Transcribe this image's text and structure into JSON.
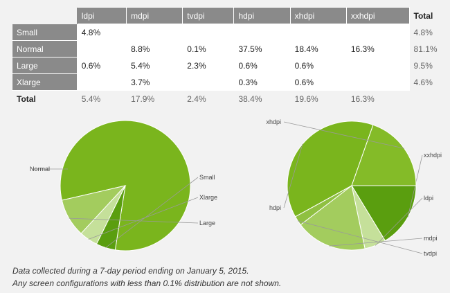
{
  "table": {
    "columns": [
      "ldpi",
      "mdpi",
      "tvdpi",
      "hdpi",
      "xhdpi",
      "xxhdpi"
    ],
    "total_header": "Total",
    "rows": [
      {
        "label": "Small",
        "cells": [
          "4.8%",
          "",
          "",
          "",
          "",
          ""
        ],
        "total": "4.8%"
      },
      {
        "label": "Normal",
        "cells": [
          "",
          "8.8%",
          "0.1%",
          "37.5%",
          "18.4%",
          "16.3%"
        ],
        "total": "81.1%"
      },
      {
        "label": "Large",
        "cells": [
          "0.6%",
          "5.4%",
          "2.3%",
          "0.6%",
          "0.6%",
          ""
        ],
        "total": "9.5%"
      },
      {
        "label": "Xlarge",
        "cells": [
          "",
          "3.7%",
          "",
          "0.3%",
          "0.6%",
          ""
        ],
        "total": "4.6%"
      }
    ],
    "totals_label": "Total",
    "totals": [
      "5.4%",
      "17.9%",
      "2.4%",
      "38.4%",
      "19.6%",
      "16.3%"
    ]
  },
  "chart_data": [
    {
      "type": "pie",
      "slices": [
        {
          "label": "Normal",
          "value": 81.1
        },
        {
          "label": "Small",
          "value": 4.8
        },
        {
          "label": "Xlarge",
          "value": 4.6
        },
        {
          "label": "Large",
          "value": 9.5
        }
      ],
      "colors": {
        "Normal": "#7ab51d",
        "Small": "#5a9e0f",
        "Xlarge": "#c5e09a",
        "Large": "#a3cc5e"
      }
    },
    {
      "type": "pie",
      "slices": [
        {
          "label": "xxhdpi",
          "value": 16.3
        },
        {
          "label": "ldpi",
          "value": 5.4
        },
        {
          "label": "mdpi",
          "value": 17.9
        },
        {
          "label": "tvdpi",
          "value": 2.4
        },
        {
          "label": "hdpi",
          "value": 38.4
        },
        {
          "label": "xhdpi",
          "value": 19.6
        }
      ],
      "colors": {
        "xxhdpi": "#5a9e0f",
        "ldpi": "#c5e09a",
        "mdpi": "#a3cc5e",
        "tvdpi": "#8fc041",
        "hdpi": "#7ab51d",
        "xhdpi": "#84bb28"
      }
    }
  ],
  "footnote": {
    "line1": "Data collected during a 7-day period ending on January 5, 2015.",
    "line2": "Any screen configurations with less than 0.1% distribution are not shown."
  }
}
